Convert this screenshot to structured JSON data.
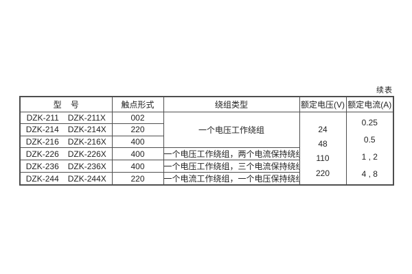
{
  "page": {
    "continued_label": "续表"
  },
  "table": {
    "header": {
      "model": "型    号",
      "contact": "触点形式",
      "winding": "绕组类型",
      "voltage": "额定电压(V)",
      "current": "额定电流(A)"
    },
    "rows": [
      {
        "model_left": "DZK-211",
        "model_right": "DZK-211X",
        "contact": "002"
      },
      {
        "model_left": "DZK-214",
        "model_right": "DZK-214X",
        "contact": "220"
      },
      {
        "model_left": "DZK-216",
        "model_right": "DZK-216X",
        "contact": "400"
      },
      {
        "model_left": "DZK-226",
        "model_right": "DZK-226X",
        "contact": "400",
        "winding": "一个电压工作绕组，两个电流保持绕组"
      },
      {
        "model_left": "DZK-236",
        "model_right": "DZK-236X",
        "contact": "400",
        "winding": "一个电压工作绕组，三个电流保持绕组"
      },
      {
        "model_left": "DZK-244",
        "model_right": "DZK-244X",
        "contact": "220",
        "winding": "一个电流工作绕组，一个电压保持绕组"
      }
    ],
    "merged": {
      "winding_top": "一个电压工作绕组",
      "voltage_values": [
        "24",
        "48",
        "110",
        "220"
      ],
      "current_values": [
        "0.25",
        "0.5",
        "1 , 2",
        "4 , 8"
      ]
    },
    "colors": {
      "border": "#4d4d4d",
      "text": "#222222",
      "background": "#ffffff"
    }
  }
}
